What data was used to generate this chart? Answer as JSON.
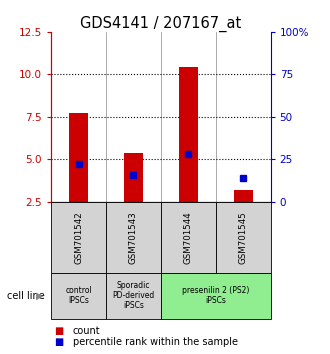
{
  "title": "GDS4141 / 207167_at",
  "samples": [
    "GSM701542",
    "GSM701543",
    "GSM701544",
    "GSM701545"
  ],
  "red_values": [
    7.75,
    5.35,
    10.45,
    3.2
  ],
  "blue_values": [
    4.7,
    4.1,
    5.3,
    3.9
  ],
  "y_min": 2.5,
  "y_max": 12.5,
  "y_ticks_left": [
    2.5,
    5.0,
    7.5,
    10.0,
    12.5
  ],
  "y_ticks_right_vals": [
    0,
    25,
    50,
    75,
    100
  ],
  "y_ticks_right_labels": [
    "0",
    "25",
    "50",
    "75",
    "100%"
  ],
  "dotted_lines": [
    5.0,
    7.5,
    10.0
  ],
  "groups": [
    {
      "label": "control\nIPSCs",
      "start": 0,
      "end": 0,
      "color": "#d3d3d3"
    },
    {
      "label": "Sporadic\nPD-derived\niPSCs",
      "start": 1,
      "end": 1,
      "color": "#d3d3d3"
    },
    {
      "label": "presenilin 2 (PS2)\niPSCs",
      "start": 2,
      "end": 3,
      "color": "#90EE90"
    }
  ],
  "bar_color": "#cc0000",
  "blue_color": "#0000cc",
  "sample_box_color": "#d3d3d3",
  "cell_line_label": "cell line",
  "legend_count": "count",
  "legend_percentile": "percentile rank within the sample",
  "bar_width": 0.35,
  "title_fontsize": 10.5
}
